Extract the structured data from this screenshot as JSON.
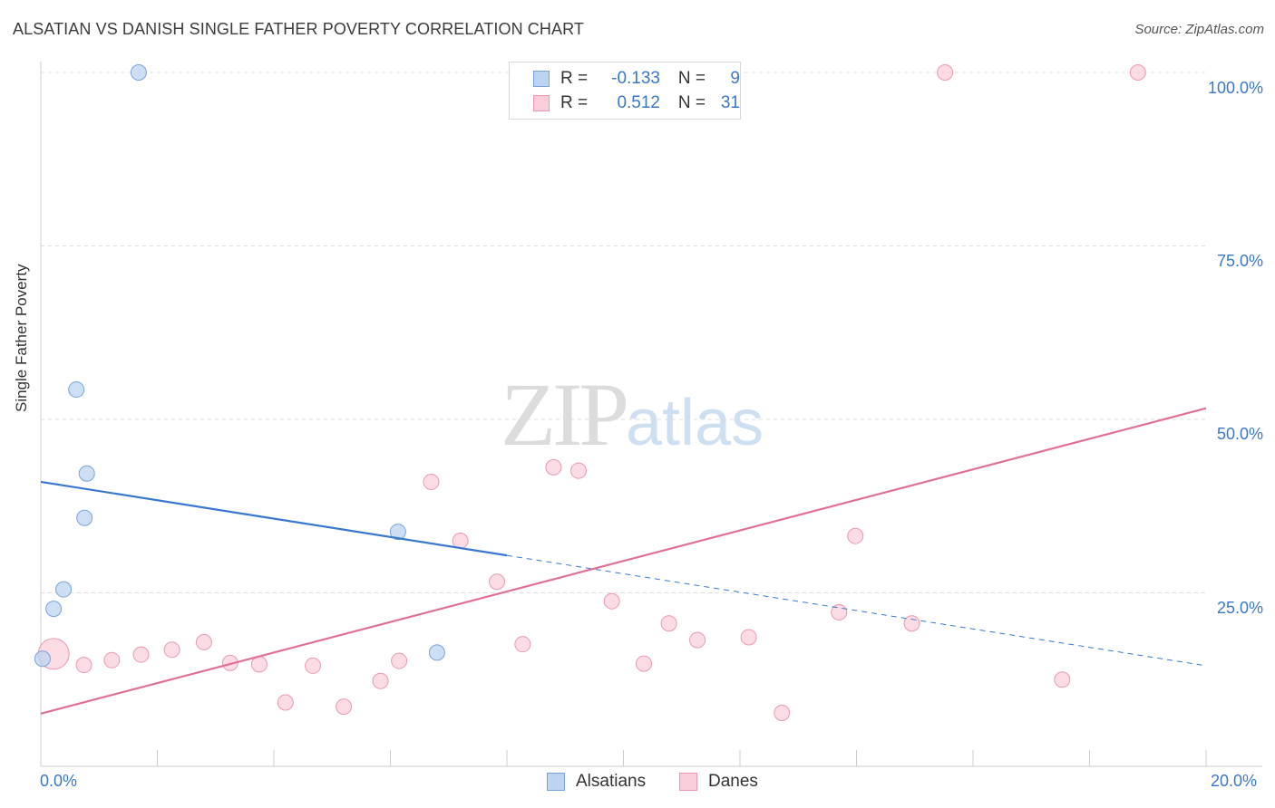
{
  "title": "ALSATIAN VS DANISH SINGLE FATHER POVERTY CORRELATION CHART",
  "source": "Source: ZipAtlas.com",
  "watermark": {
    "zip": "ZIP",
    "atlas": "atlas"
  },
  "legend": {
    "rows": [
      {
        "r_label": "R =",
        "r_value": "-0.133",
        "n_label": "N =",
        "n_value": "9"
      },
      {
        "r_label": "R =",
        "r_value": "0.512",
        "n_label": "N =",
        "n_value": "31"
      }
    ]
  },
  "bottom_legend": {
    "alsatians": "Alsatians",
    "danes": "Danes"
  },
  "colors": {
    "alsatian_fill": "#bcd4f2",
    "alsatian_stroke": "#7aa3d8",
    "alsatian_line": "#3a78d0",
    "danes_fill": "#f9cdd9",
    "danes_stroke": "#e89ab0",
    "danes_line": "#e07098",
    "tick_label": "#3a78c7",
    "grid": "#dddddd"
  },
  "chart_data": {
    "type": "scatter",
    "title": "ALSATIAN VS DANISH SINGLE FATHER POVERTY CORRELATION CHART",
    "xlabel": "",
    "ylabel": "Single Father Poverty",
    "xlim": [
      0,
      20
    ],
    "ylim": [
      0,
      100
    ],
    "x_tick_labels": [
      "0.0%",
      "20.0%"
    ],
    "y_tick_labels": [
      "25.0%",
      "50.0%",
      "75.0%",
      "100.0%"
    ],
    "y_tick_values": [
      25,
      50,
      75,
      100
    ],
    "series": [
      {
        "name": "Alsatians",
        "points": [
          {
            "x": 0.03,
            "y": 15.5,
            "big": false
          },
          {
            "x": 0.22,
            "y": 22.7
          },
          {
            "x": 0.39,
            "y": 25.5
          },
          {
            "x": 0.61,
            "y": 54.3
          },
          {
            "x": 0.75,
            "y": 35.8
          },
          {
            "x": 0.79,
            "y": 42.2
          },
          {
            "x": 1.68,
            "y": 100.0
          },
          {
            "x": 6.13,
            "y": 33.8
          },
          {
            "x": 6.8,
            "y": 16.4
          }
        ],
        "trend": {
          "x0": 0,
          "y0": 41.0,
          "x1": 8.0,
          "y1": 30.4,
          "dash_to_x": 20,
          "dash_to_y": 14.5
        }
      },
      {
        "name": "Danes",
        "points": [
          {
            "x": 0.22,
            "y": 16.2,
            "big": true
          },
          {
            "x": 0.74,
            "y": 14.6
          },
          {
            "x": 1.22,
            "y": 15.3
          },
          {
            "x": 1.72,
            "y": 16.1
          },
          {
            "x": 2.25,
            "y": 16.8
          },
          {
            "x": 2.8,
            "y": 17.9
          },
          {
            "x": 3.25,
            "y": 14.9
          },
          {
            "x": 3.75,
            "y": 14.7
          },
          {
            "x": 4.2,
            "y": 9.2
          },
          {
            "x": 4.67,
            "y": 14.5
          },
          {
            "x": 5.2,
            "y": 8.6
          },
          {
            "x": 5.83,
            "y": 12.3
          },
          {
            "x": 6.15,
            "y": 15.2
          },
          {
            "x": 6.7,
            "y": 41.0
          },
          {
            "x": 7.2,
            "y": 32.5
          },
          {
            "x": 7.83,
            "y": 26.6
          },
          {
            "x": 8.27,
            "y": 17.6
          },
          {
            "x": 8.8,
            "y": 43.1
          },
          {
            "x": 9.23,
            "y": 42.6
          },
          {
            "x": 9.8,
            "y": 23.8
          },
          {
            "x": 10.35,
            "y": 14.8
          },
          {
            "x": 10.78,
            "y": 20.6
          },
          {
            "x": 11.27,
            "y": 18.2
          },
          {
            "x": 12.15,
            "y": 18.6
          },
          {
            "x": 12.72,
            "y": 7.7
          },
          {
            "x": 13.7,
            "y": 22.2
          },
          {
            "x": 13.98,
            "y": 33.2
          },
          {
            "x": 14.95,
            "y": 20.6
          },
          {
            "x": 15.52,
            "y": 100.0
          },
          {
            "x": 17.53,
            "y": 12.5
          },
          {
            "x": 18.83,
            "y": 100.0
          }
        ],
        "trend": {
          "x0": 0,
          "y0": 7.6,
          "x1": 20,
          "y1": 51.6
        }
      }
    ]
  }
}
